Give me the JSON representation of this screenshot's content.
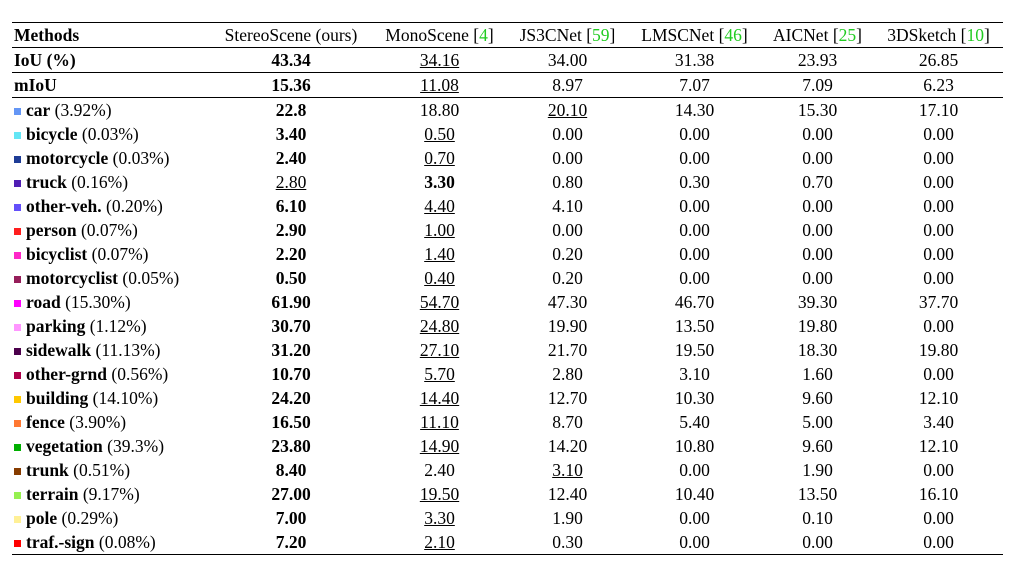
{
  "table": {
    "header": {
      "label": "Methods",
      "methods": [
        {
          "name": "StereoScene (ours)"
        },
        {
          "name": "MonoScene",
          "cite": {
            "open": "[",
            "number": "4",
            "close": "]"
          }
        },
        {
          "name": "JS3CNet",
          "cite": {
            "open": "[",
            "number": "59",
            "close": "]"
          }
        },
        {
          "name": "LMSCNet",
          "cite": {
            "open": "[",
            "number": "46",
            "close": "]"
          }
        },
        {
          "name": "AICNet",
          "cite": {
            "open": "[",
            "number": "25",
            "close": "]"
          }
        },
        {
          "name": "3DSketch",
          "cite": {
            "open": "[",
            "number": "10",
            "close": "]"
          }
        }
      ]
    },
    "summary_rows": [
      {
        "label": "IoU (%)",
        "values": [
          "43.34",
          "34.16",
          "34.00",
          "31.38",
          "23.93",
          "26.85"
        ],
        "best": 0,
        "second": 1
      },
      {
        "label": "mIoU",
        "values": [
          "15.36",
          "11.08",
          "8.97",
          "7.07",
          "7.09",
          "6.23"
        ],
        "best": 0,
        "second": 1
      }
    ],
    "class_rows": [
      {
        "label": "car",
        "freq": "(3.92%)",
        "color": "#6496f5",
        "values": [
          "22.8",
          "18.80",
          "20.10",
          "14.30",
          "15.30",
          "17.10"
        ],
        "best": 0,
        "second": 2
      },
      {
        "label": "bicycle",
        "freq": "(0.03%)",
        "color": "#64e6f5",
        "values": [
          "3.40",
          "0.50",
          "0.00",
          "0.00",
          "0.00",
          "0.00"
        ],
        "best": 0,
        "second": 1
      },
      {
        "label": "motorcycle",
        "freq": "(0.03%)",
        "color": "#1e3c96",
        "values": [
          "2.40",
          "0.70",
          "0.00",
          "0.00",
          "0.00",
          "0.00"
        ],
        "best": 0,
        "second": 1
      },
      {
        "label": "truck",
        "freq": "(0.16%)",
        "color": "#501eb4",
        "values": [
          "2.80",
          "3.30",
          "0.80",
          "0.30",
          "0.70",
          "0.00"
        ],
        "best": 1,
        "second": 0
      },
      {
        "label": "other-veh.",
        "freq": "(0.20%)",
        "color": "#6450fa",
        "values": [
          "6.10",
          "4.40",
          "4.10",
          "0.00",
          "0.00",
          "0.00"
        ],
        "best": 0,
        "second": 1
      },
      {
        "label": "person",
        "freq": "(0.07%)",
        "color": "#ff1e1e",
        "values": [
          "2.90",
          "1.00",
          "0.00",
          "0.00",
          "0.00",
          "0.00"
        ],
        "best": 0,
        "second": 1
      },
      {
        "label": "bicyclist",
        "freq": "(0.07%)",
        "color": "#ff28c8",
        "values": [
          "2.20",
          "1.40",
          "0.20",
          "0.00",
          "0.00",
          "0.00"
        ],
        "best": 0,
        "second": 1
      },
      {
        "label": "motorcyclist",
        "freq": "(0.05%)",
        "color": "#961e5a",
        "values": [
          "0.50",
          "0.40",
          "0.20",
          "0.00",
          "0.00",
          "0.00"
        ],
        "best": 0,
        "second": 1
      },
      {
        "label": "road",
        "freq": "(15.30%)",
        "color": "#ff00ff",
        "values": [
          "61.90",
          "54.70",
          "47.30",
          "46.70",
          "39.30",
          "37.70"
        ],
        "best": 0,
        "second": 1
      },
      {
        "label": "parking",
        "freq": "(1.12%)",
        "color": "#ff96ff",
        "values": [
          "30.70",
          "24.80",
          "19.90",
          "13.50",
          "19.80",
          "0.00"
        ],
        "best": 0,
        "second": 1
      },
      {
        "label": "sidewalk",
        "freq": "(11.13%)",
        "color": "#4b004b",
        "values": [
          "31.20",
          "27.10",
          "21.70",
          "19.50",
          "18.30",
          "19.80"
        ],
        "best": 0,
        "second": 1
      },
      {
        "label": "other-grnd",
        "freq": "(0.56%)",
        "color": "#af004b",
        "values": [
          "10.70",
          "5.70",
          "2.80",
          "3.10",
          "1.60",
          "0.00"
        ],
        "best": 0,
        "second": 1
      },
      {
        "label": "building",
        "freq": "(14.10%)",
        "color": "#ffc800",
        "values": [
          "24.20",
          "14.40",
          "12.70",
          "10.30",
          "9.60",
          "12.10"
        ],
        "best": 0,
        "second": 1
      },
      {
        "label": "fence",
        "freq": "(3.90%)",
        "color": "#ff7832",
        "values": [
          "16.50",
          "11.10",
          "8.70",
          "5.40",
          "5.00",
          "3.40"
        ],
        "best": 0,
        "second": 1
      },
      {
        "label": "vegetation",
        "freq": "(39.3%)",
        "color": "#00af00",
        "values": [
          "23.80",
          "14.90",
          "14.20",
          "10.80",
          "9.60",
          "12.10"
        ],
        "best": 0,
        "second": 1
      },
      {
        "label": "trunk",
        "freq": "(0.51%)",
        "color": "#873c00",
        "values": [
          "8.40",
          "2.40",
          "3.10",
          "0.00",
          "1.90",
          "0.00"
        ],
        "best": 0,
        "second": 2
      },
      {
        "label": "terrain",
        "freq": "(9.17%)",
        "color": "#96f050",
        "values": [
          "27.00",
          "19.50",
          "12.40",
          "10.40",
          "13.50",
          "16.10"
        ],
        "best": 0,
        "second": 1
      },
      {
        "label": "pole",
        "freq": "(0.29%)",
        "color": "#fff096",
        "values": [
          "7.00",
          "3.30",
          "1.90",
          "0.00",
          "0.10",
          "0.00"
        ],
        "best": 0,
        "second": 1
      },
      {
        "label": "traf.-sign",
        "freq": "(0.08%)",
        "color": "#ff0000",
        "values": [
          "7.20",
          "2.10",
          "0.30",
          "0.00",
          "0.00",
          "0.00"
        ],
        "best": 0,
        "second": 1
      }
    ]
  }
}
